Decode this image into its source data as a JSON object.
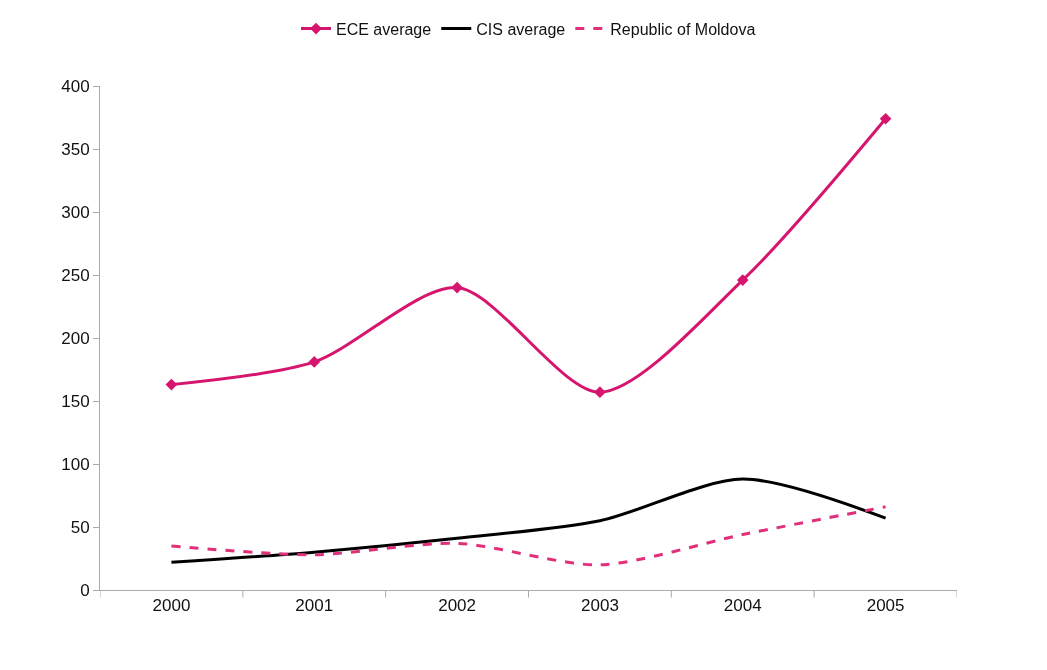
{
  "chart_data": {
    "type": "line",
    "categories": [
      "2000",
      "2001",
      "2002",
      "2003",
      "2004",
      "2005"
    ],
    "series": [
      {
        "name": "ECE average",
        "color": "#d6156f",
        "values": [
          163,
          181,
          240,
          157,
          246,
          374
        ],
        "marker": "diamond",
        "line_style": "solid"
      },
      {
        "name": "CIS average",
        "color": "#000000",
        "values": [
          22,
          30,
          41,
          55,
          88,
          57
        ],
        "marker": "none",
        "line_style": "solid"
      },
      {
        "name": "Republic of Moldova",
        "color": "#e0307a",
        "values": [
          35,
          28,
          37,
          20,
          44,
          66
        ],
        "marker": "none",
        "line_style": "dashed"
      }
    ],
    "ylim": [
      0,
      400
    ],
    "yticks": [
      0,
      50,
      100,
      150,
      200,
      250,
      300,
      350,
      400
    ],
    "grid": false,
    "legend": "top"
  }
}
